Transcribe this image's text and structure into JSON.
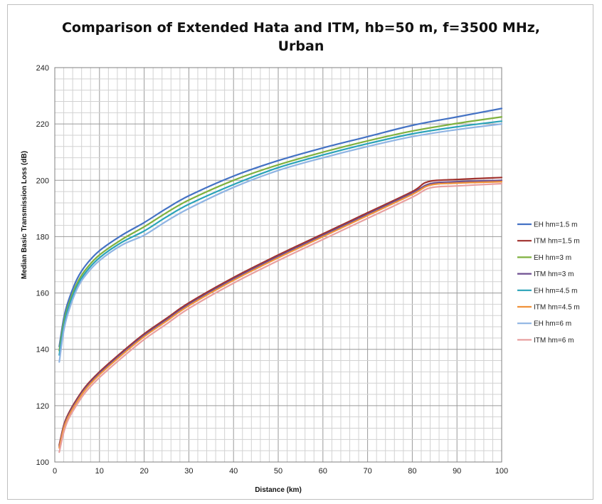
{
  "chart_data": {
    "type": "line",
    "title_lines": [
      "Comparison of Extended Hata and ITM, hb=50 m, f=3500 MHz,",
      "Urban"
    ],
    "xlabel": "Distance (km)",
    "ylabel": "Median Basic Transmission Loss (dB)",
    "xlim": [
      0,
      100
    ],
    "ylim": [
      100,
      240
    ],
    "xticks": [
      "0",
      "10",
      "20",
      "30",
      "40",
      "50",
      "60",
      "70",
      "80",
      "90",
      "100"
    ],
    "yticks": [
      "100",
      "120",
      "140",
      "160",
      "180",
      "200",
      "220",
      "240"
    ],
    "grid": true,
    "legend_position": "right",
    "series": [
      {
        "name": "EH hm=1.5 m",
        "color": "#4472c4",
        "points": [
          [
            1,
            141
          ],
          [
            2,
            151
          ],
          [
            3,
            157
          ],
          [
            5,
            165
          ],
          [
            7,
            170
          ],
          [
            10,
            175
          ],
          [
            15,
            180.5
          ],
          [
            20,
            185
          ],
          [
            25,
            190
          ],
          [
            30,
            194.5
          ],
          [
            40,
            201.5
          ],
          [
            50,
            207
          ],
          [
            60,
            211.5
          ],
          [
            70,
            215.5
          ],
          [
            80,
            219.5
          ],
          [
            90,
            222.5
          ],
          [
            100,
            225.5
          ]
        ]
      },
      {
        "name": "ITM hm=1.5 m",
        "color": "#a0312d",
        "points": [
          [
            1,
            106
          ],
          [
            2,
            113
          ],
          [
            3,
            117
          ],
          [
            5,
            122.5
          ],
          [
            7,
            127
          ],
          [
            10,
            132
          ],
          [
            15,
            139
          ],
          [
            20,
            145.5
          ],
          [
            25,
            151
          ],
          [
            30,
            156.5
          ],
          [
            40,
            165.5
          ],
          [
            50,
            173.5
          ],
          [
            60,
            181
          ],
          [
            70,
            188.5
          ],
          [
            80,
            196
          ],
          [
            83.5,
            199.5
          ],
          [
            90,
            200.3
          ],
          [
            100,
            201
          ]
        ]
      },
      {
        "name": "EH hm=3 m",
        "color": "#7fb13f",
        "points": [
          [
            1,
            139.5
          ],
          [
            2,
            149.5
          ],
          [
            3,
            155.5
          ],
          [
            5,
            163.5
          ],
          [
            7,
            168.5
          ],
          [
            10,
            173.5
          ],
          [
            15,
            179
          ],
          [
            20,
            183.5
          ],
          [
            25,
            188.5
          ],
          [
            30,
            193
          ],
          [
            40,
            200
          ],
          [
            50,
            205.5
          ],
          [
            60,
            210
          ],
          [
            70,
            214
          ],
          [
            80,
            217.5
          ],
          [
            90,
            220.2
          ],
          [
            100,
            222.5
          ]
        ]
      },
      {
        "name": "ITM hm=3 m",
        "color": "#6e4f90",
        "points": [
          [
            1,
            105.5
          ],
          [
            2,
            112.5
          ],
          [
            3,
            116.5
          ],
          [
            5,
            122
          ],
          [
            7,
            126.5
          ],
          [
            10,
            131.5
          ],
          [
            15,
            138.5
          ],
          [
            20,
            145
          ],
          [
            25,
            150.5
          ],
          [
            30,
            156
          ],
          [
            40,
            165
          ],
          [
            50,
            173
          ],
          [
            60,
            180.5
          ],
          [
            70,
            188
          ],
          [
            80,
            195.5
          ],
          [
            84,
            198.8
          ],
          [
            90,
            199.5
          ],
          [
            100,
            200
          ]
        ]
      },
      {
        "name": "EH hm=4.5 m",
        "color": "#2aa3b8",
        "points": [
          [
            1,
            138
          ],
          [
            2,
            148
          ],
          [
            3,
            154.5
          ],
          [
            5,
            162.5
          ],
          [
            7,
            167.5
          ],
          [
            10,
            172.5
          ],
          [
            15,
            178
          ],
          [
            20,
            182
          ],
          [
            25,
            187
          ],
          [
            30,
            191.5
          ],
          [
            40,
            198.5
          ],
          [
            50,
            204.5
          ],
          [
            60,
            209
          ],
          [
            70,
            213
          ],
          [
            80,
            216.5
          ],
          [
            90,
            219
          ],
          [
            100,
            221
          ]
        ]
      },
      {
        "name": "ITM hm=4.5 m",
        "color": "#f0923a",
        "points": [
          [
            1,
            105
          ],
          [
            2,
            112
          ],
          [
            3,
            116
          ],
          [
            5,
            121.5
          ],
          [
            7,
            126
          ],
          [
            10,
            131
          ],
          [
            15,
            138
          ],
          [
            20,
            144.5
          ],
          [
            25,
            150
          ],
          [
            30,
            155.5
          ],
          [
            40,
            164.5
          ],
          [
            50,
            172.5
          ],
          [
            60,
            180
          ],
          [
            70,
            187.5
          ],
          [
            80,
            195
          ],
          [
            84,
            198.3
          ],
          [
            90,
            199
          ],
          [
            100,
            199.5
          ]
        ]
      },
      {
        "name": "EH hm=6 m",
        "color": "#8fb4e3",
        "points": [
          [
            1,
            135.5
          ],
          [
            2,
            146.5
          ],
          [
            3,
            153
          ],
          [
            5,
            161.5
          ],
          [
            7,
            166.5
          ],
          [
            10,
            171.5
          ],
          [
            15,
            177
          ],
          [
            20,
            180.5
          ],
          [
            25,
            185.5
          ],
          [
            30,
            190
          ],
          [
            40,
            197.5
          ],
          [
            50,
            203.5
          ],
          [
            60,
            208
          ],
          [
            70,
            212
          ],
          [
            80,
            215.5
          ],
          [
            90,
            218
          ],
          [
            100,
            220
          ]
        ]
      },
      {
        "name": "ITM hm=6 m",
        "color": "#e8a0a0",
        "points": [
          [
            1,
            103.5
          ],
          [
            2,
            110.5
          ],
          [
            3,
            115
          ],
          [
            5,
            120.5
          ],
          [
            7,
            125
          ],
          [
            10,
            130
          ],
          [
            15,
            137
          ],
          [
            20,
            143.5
          ],
          [
            25,
            149
          ],
          [
            30,
            154.5
          ],
          [
            40,
            163.5
          ],
          [
            50,
            171.5
          ],
          [
            60,
            179
          ],
          [
            70,
            186.5
          ],
          [
            80,
            194
          ],
          [
            84,
            197.3
          ],
          [
            90,
            198
          ],
          [
            100,
            198.8
          ]
        ]
      }
    ]
  }
}
